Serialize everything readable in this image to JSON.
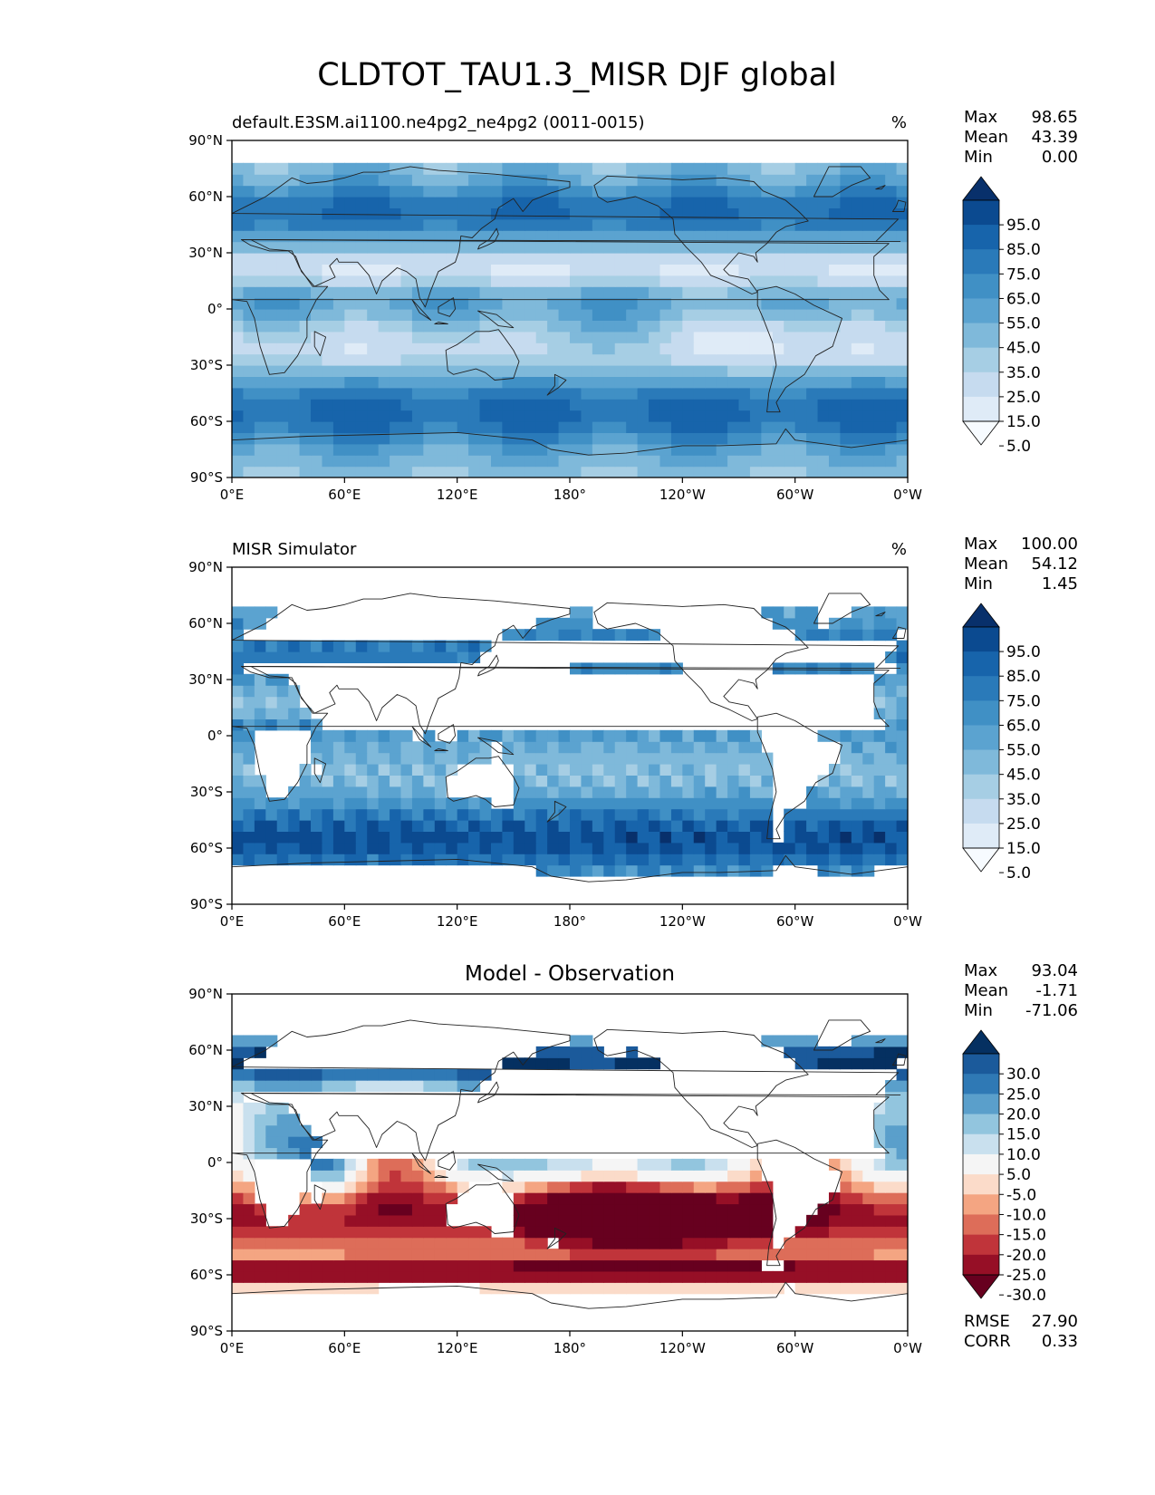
{
  "figure_title": "CLDTOT_TAU1.3_MISR DJF global",
  "chart_data": [
    {
      "type": "heatmap",
      "title": "default.E3SM.ai1100.ne4pg2_ne4pg2 (0011-0015)",
      "units": "%",
      "stats": {
        "max_label": "Max",
        "max": "98.65",
        "mean_label": "Mean",
        "mean": "43.39",
        "min_label": "Min",
        "min": "0.00"
      },
      "x_ticks": [
        "0°E",
        "60°E",
        "120°E",
        "180°",
        "120°W",
        "60°W",
        "0°W"
      ],
      "y_ticks": [
        "90°N",
        "60°N",
        "30°N",
        "0°",
        "30°S",
        "60°S",
        "90°S"
      ],
      "xlim": [
        0,
        360
      ],
      "ylim": [
        -90,
        90
      ],
      "data_lat_range": [
        -90,
        75
      ],
      "colorbar": {
        "levels": [
          "95.0",
          "85.0",
          "75.0",
          "65.0",
          "55.0",
          "45.0",
          "35.0",
          "25.0",
          "15.0",
          "5.0"
        ],
        "colors": [
          "#08306b",
          "#0b4a90",
          "#1764ab",
          "#2a7ab9",
          "#4090c5",
          "#5ba3d0",
          "#7fb9da",
          "#a6cee4",
          "#c6dbef",
          "#dfebf7",
          "#f7fbff"
        ]
      }
    },
    {
      "type": "heatmap",
      "title": "MISR Simulator",
      "units": "%",
      "stats": {
        "max_label": "Max",
        "max": "100.00",
        "mean_label": "Mean",
        "mean": "54.12",
        "min_label": "Min",
        "min": "1.45"
      },
      "x_ticks": [
        "0°E",
        "60°E",
        "120°E",
        "180°",
        "120°W",
        "60°W",
        "0°W"
      ],
      "y_ticks": [
        "90°N",
        "60°N",
        "30°N",
        "0°",
        "30°S",
        "60°S",
        "90°S"
      ],
      "xlim": [
        0,
        360
      ],
      "ylim": [
        -90,
        90
      ],
      "data_lat_range": [
        -75,
        68
      ],
      "colorbar": {
        "levels": [
          "95.0",
          "85.0",
          "75.0",
          "65.0",
          "55.0",
          "45.0",
          "35.0",
          "25.0",
          "15.0",
          "5.0"
        ],
        "colors": [
          "#08306b",
          "#0b4a90",
          "#1764ab",
          "#2a7ab9",
          "#4090c5",
          "#5ba3d0",
          "#7fb9da",
          "#a6cee4",
          "#c6dbef",
          "#dfebf7",
          "#f7fbff"
        ]
      }
    },
    {
      "type": "heatmap",
      "title": "Model - Observation",
      "units": "",
      "stats": {
        "max_label": "Max",
        "max": "93.04",
        "mean_label": "Mean",
        "mean": "-1.71",
        "min_label": "Min",
        "min": "-71.06"
      },
      "extra_stats": {
        "rmse_label": "RMSE",
        "rmse": "27.90",
        "corr_label": "CORR",
        "corr": "0.33"
      },
      "x_ticks": [
        "0°E",
        "60°E",
        "120°E",
        "180°",
        "120°W",
        "60°W",
        "0°W"
      ],
      "y_ticks": [
        "90°N",
        "60°N",
        "30°N",
        "0°",
        "30°S",
        "60°S",
        "90°S"
      ],
      "xlim": [
        0,
        360
      ],
      "ylim": [
        -90,
        90
      ],
      "data_lat_range": [
        -70,
        68
      ],
      "colorbar": {
        "levels": [
          "30.0",
          "25.0",
          "20.0",
          "15.0",
          "10.0",
          "5.0",
          "-5.0",
          "-10.0",
          "-15.0",
          "-20.0",
          "-25.0",
          "-30.0"
        ],
        "colors": [
          "#053061",
          "#1b5a9b",
          "#2f79b5",
          "#5a9fcb",
          "#92c5de",
          "#c9e0ee",
          "#f5f5f5",
          "#fbdbc9",
          "#f4a582",
          "#dd6d59",
          "#c0343a",
          "#960f26",
          "#67001f"
        ]
      }
    }
  ]
}
